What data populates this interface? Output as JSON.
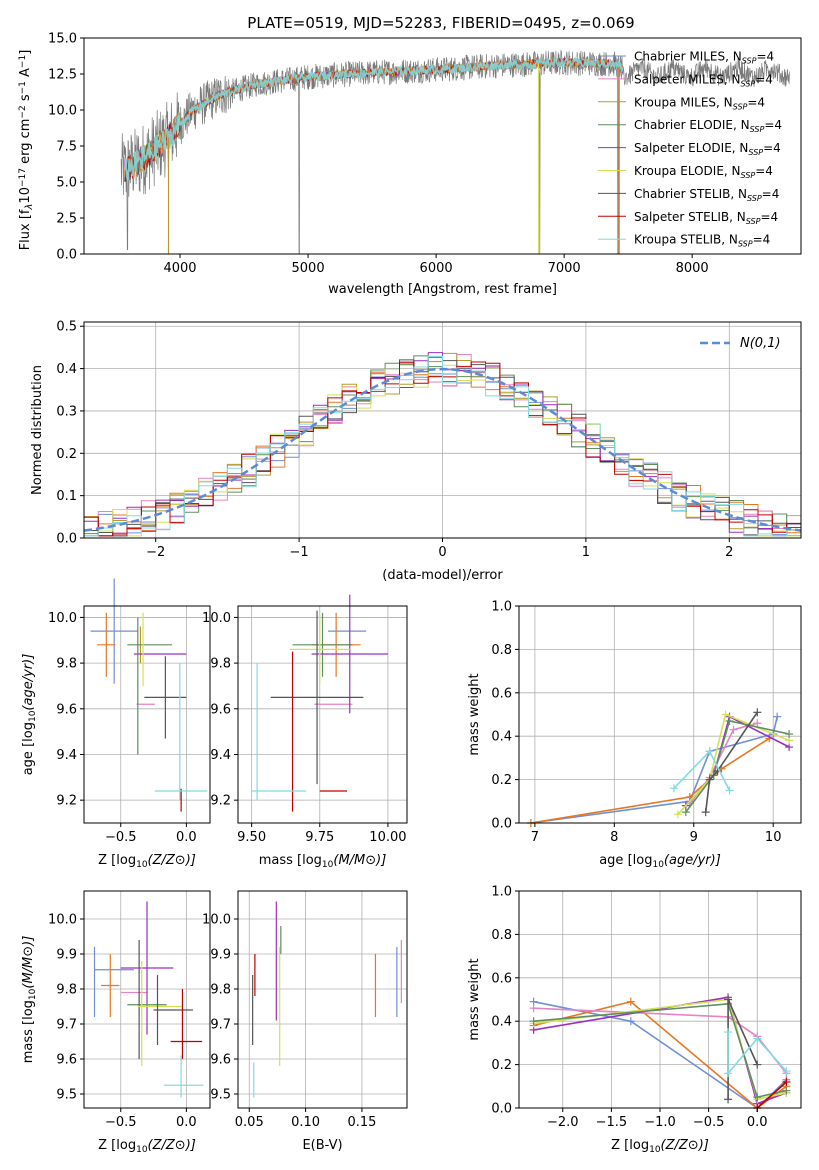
{
  "figure_title": "PLATE=0519, MJD=52283, FIBERID=0495, z=0.069",
  "colors": {
    "blue": "#6f8fd6",
    "orange": "#e87722",
    "pink": "#e683c2",
    "olive": "#b59b2e",
    "green": "#5f8f5f",
    "purple": "#9b30c0",
    "yellow": "#d4e157",
    "dark": "#555555",
    "red": "#c00000",
    "cyan": "#80dce0",
    "gray": "#7a7a7a"
  },
  "legend_model_names": [
    "Chabrier MILES",
    "Salpeter MILES",
    "Kroupa MILES",
    "Chabrier ELODIE",
    "Salpeter ELODIE",
    "Kroupa ELODIE",
    "Chabrier STELIB",
    "Salpeter STELIB",
    "Kroupa STELIB"
  ],
  "legend_nssp": "N",
  "legend_nssp_sub": "SSP",
  "legend_nssp_val": "=4",
  "chart_data": [
    {
      "id": "spectrum",
      "type": "line",
      "xlabel": "wavelength [Angstrom, rest frame]",
      "ylabel_parts": [
        "Flux [f",
        "λ",
        "10",
        "−17",
        " erg cm",
        "−2",
        " s",
        "−1",
        " A",
        "−1",
        "]"
      ],
      "xlim": [
        3250,
        8850
      ],
      "ylim": [
        0,
        15
      ],
      "xticks": [
        4000,
        5000,
        6000,
        7000,
        8000
      ],
      "yticks": [
        0.0,
        2.5,
        5.0,
        7.5,
        10.0,
        12.5,
        15.0
      ],
      "ytick_labels": [
        "0.0",
        "2.5",
        "5.0",
        "7.5",
        "10.0",
        "12.5",
        "15.0"
      ],
      "continuum": {
        "x": [
          3560,
          3700,
          3900,
          4000,
          4100,
          4300,
          4600,
          5000,
          5500,
          6000,
          6500,
          7000,
          7400,
          7460
        ],
        "y": [
          5.8,
          6.5,
          8.0,
          9.0,
          10.0,
          11.0,
          11.8,
          12.3,
          12.6,
          12.8,
          13.1,
          13.3,
          13.2,
          12.8
        ]
      },
      "model_xrange": [
        3560,
        7460
      ],
      "data_xrange": [
        3540,
        8760
      ]
    },
    {
      "id": "residuals",
      "type": "histogram",
      "xlabel": "(data-model)/error",
      "ylabel": "Normed distribution",
      "xlim": [
        -2.5,
        2.5
      ],
      "ylim": [
        0,
        0.51
      ],
      "xticks": [
        -2,
        -1,
        0,
        1,
        2
      ],
      "xtick_labels": [
        "−2",
        "−1",
        "0",
        "1",
        "2"
      ],
      "yticks": [
        0.0,
        0.1,
        0.2,
        0.3,
        0.4,
        0.5
      ],
      "ytick_labels": [
        "0.0",
        "0.1",
        "0.2",
        "0.3",
        "0.4",
        "0.5"
      ],
      "bin_width": 0.1,
      "reference_label": "N(0,1)",
      "reference_mean": 0,
      "reference_sigma": 1
    },
    {
      "id": "age_vs_Z",
      "type": "scatter",
      "xlabel": "Z [log10(Z/Z⊙)]",
      "ylabel": "age  [log10(age/yr)]",
      "xlim": [
        -0.78,
        0.18
      ],
      "ylim": [
        9.1,
        10.05
      ],
      "xticks": [
        -0.5,
        0.0
      ],
      "xtick_labels": [
        "−0.5",
        "0.0"
      ],
      "yticks": [
        9.2,
        9.4,
        9.6,
        9.8,
        10.0
      ],
      "ytick_labels": [
        "9.2",
        "9.4",
        "9.6",
        "9.8",
        "10.0"
      ],
      "points": [
        {
          "c": "blue",
          "x": -0.55,
          "xe": 0.18,
          "y": 9.94,
          "ye": 0.23
        },
        {
          "c": "orange",
          "x": -0.61,
          "xe": 0.07,
          "y": 9.88,
          "ye": 0.14
        },
        {
          "c": "pink",
          "x": -0.31,
          "xe": 0.07,
          "y": 9.62,
          "ye": 0.0
        },
        {
          "c": "olive",
          "x": -0.35,
          "xe": 0.0,
          "y": 9.88,
          "ye": 0.08
        },
        {
          "c": "green",
          "x": -0.28,
          "xe": 0.17,
          "y": 9.88,
          "ye": 0.0
        },
        {
          "c": "purple",
          "x": -0.2,
          "xe": 0.2,
          "y": 9.84,
          "ye": 0.0
        },
        {
          "c": "yellow",
          "x": -0.33,
          "xe": 0.0,
          "y": 9.86,
          "ye": 0.16
        },
        {
          "c": "dark",
          "x": -0.16,
          "xe": 0.16,
          "y": 9.65,
          "ye": 0.18
        },
        {
          "c": "red",
          "x": -0.04,
          "xe": 0.0,
          "y": 9.2,
          "ye": 0.05
        },
        {
          "c": "cyan",
          "x": -0.04,
          "xe": 0.2,
          "y": 9.24,
          "ye": 0.0
        },
        {
          "c": "green",
          "x": -0.37,
          "xe": 0.0,
          "y": 9.7,
          "ye": 0.3
        },
        {
          "c": "cyan",
          "x": -0.05,
          "xe": 0.0,
          "y": 9.5,
          "ye": 0.3
        }
      ]
    },
    {
      "id": "age_vs_mass",
      "type": "scatter",
      "xlabel": "mass [log10(M/M⊙)]",
      "ylabel": "",
      "xlim": [
        9.45,
        10.07
      ],
      "ylim": [
        9.1,
        10.05
      ],
      "xticks": [
        9.5,
        9.75,
        10.0
      ],
      "xtick_labels": [
        "9.50",
        "9.75",
        "10.00"
      ],
      "yticks": [
        9.2,
        9.4,
        9.6,
        9.8,
        10.0
      ],
      "ytick_labels": [
        "9.2",
        "9.4",
        "9.6",
        "9.8",
        "10.0"
      ],
      "points": [
        {
          "c": "blue",
          "x": 9.85,
          "xe": 0.07,
          "y": 9.94,
          "ye": 0.0
        },
        {
          "c": "orange",
          "x": 9.81,
          "xe": 0.09,
          "y": 9.88,
          "ye": 0.14
        },
        {
          "c": "pink",
          "x": 9.8,
          "xe": 0.07,
          "y": 9.62,
          "ye": 0.0
        },
        {
          "c": "green",
          "x": 9.76,
          "xe": 0.11,
          "y": 9.88,
          "ye": 0.14
        },
        {
          "c": "purple",
          "x": 9.86,
          "xe": 0.14,
          "y": 9.84,
          "ye": 0.26
        },
        {
          "c": "yellow",
          "x": 9.75,
          "xe": 0.11,
          "y": 9.86,
          "ye": 0.15
        },
        {
          "c": "dark",
          "x": 9.74,
          "xe": 0.17,
          "y": 9.65,
          "ye": 0.38
        },
        {
          "c": "red",
          "x": 9.65,
          "xe": 0.0,
          "y": 9.5,
          "ye": 0.35
        },
        {
          "c": "red",
          "x": 9.8,
          "xe": 0.05,
          "y": 9.24,
          "ye": 0.0
        },
        {
          "c": "cyan",
          "x": 9.52,
          "xe": 0.0,
          "y": 9.5,
          "ye": 0.3
        },
        {
          "c": "cyan",
          "x": 9.6,
          "xe": 0.1,
          "y": 9.24,
          "ye": 0.0
        }
      ]
    },
    {
      "id": "weight_vs_age",
      "type": "line",
      "xlabel": "age  [log10(age/yr)]",
      "ylabel": "mass weight",
      "xlim": [
        6.8,
        10.35
      ],
      "ylim": [
        0,
        1.0
      ],
      "xticks": [
        7,
        8,
        9,
        10
      ],
      "xtick_labels": [
        "7",
        "8",
        "9",
        "10"
      ],
      "yticks": [
        0.0,
        0.2,
        0.4,
        0.6,
        0.8,
        1.0
      ],
      "ytick_labels": [
        "0.0",
        "0.2",
        "0.4",
        "0.6",
        "0.8",
        "1.0"
      ],
      "series": [
        {
          "c": "blue",
          "x": [
            6.95,
            8.95,
            9.2,
            10.0,
            10.05
          ],
          "y": [
            0.0,
            0.1,
            0.33,
            0.41,
            0.49
          ]
        },
        {
          "c": "orange",
          "x": [
            6.95,
            8.95,
            9.35,
            9.95
          ],
          "y": [
            0.0,
            0.12,
            0.25,
            0.39
          ]
        },
        {
          "c": "pink",
          "x": [
            8.95,
            9.2,
            9.5,
            9.8
          ],
          "y": [
            0.09,
            0.21,
            0.43,
            0.46
          ]
        },
        {
          "c": "purple",
          "x": [
            8.9,
            9.25,
            9.45,
            10.2
          ],
          "y": [
            0.08,
            0.22,
            0.49,
            0.35
          ]
        },
        {
          "c": "yellow",
          "x": [
            8.8,
            9.2,
            9.4,
            10.2
          ],
          "y": [
            0.04,
            0.2,
            0.5,
            0.38
          ]
        },
        {
          "c": "green",
          "x": [
            8.9,
            9.25,
            9.45,
            10.2
          ],
          "y": [
            0.05,
            0.22,
            0.47,
            0.41
          ]
        },
        {
          "c": "dark",
          "x": [
            9.15,
            9.2,
            9.3,
            9.8
          ],
          "y": [
            0.05,
            0.2,
            0.24,
            0.51
          ]
        },
        {
          "c": "cyan",
          "x": [
            8.75,
            9.2,
            9.45
          ],
          "y": [
            0.16,
            0.33,
            0.15
          ]
        }
      ]
    },
    {
      "id": "mass_vs_Z",
      "type": "scatter",
      "xlabel": "Z [log10(Z/Z⊙)]",
      "ylabel": "mass [log10(M/M⊙)]",
      "xlim": [
        -0.78,
        0.18
      ],
      "ylim": [
        9.46,
        10.08
      ],
      "xticks": [
        -0.5,
        0.0
      ],
      "xtick_labels": [
        "−0.5",
        "0.0"
      ],
      "yticks": [
        9.5,
        9.6,
        9.7,
        9.8,
        9.9,
        10.0
      ],
      "ytick_labels": [
        "9.5",
        "9.6",
        "9.7",
        "9.8",
        "9.9",
        "10.0"
      ],
      "points": [
        {
          "c": "blue",
          "x": -0.7,
          "xe": 0.0,
          "y": 9.82,
          "ye": 0.1
        },
        {
          "c": "blue",
          "x": -0.55,
          "xe": 0.15,
          "y": 9.855,
          "ye": 0.0
        },
        {
          "c": "orange",
          "x": -0.58,
          "xe": 0.07,
          "y": 9.81,
          "ye": 0.09
        },
        {
          "c": "pink",
          "x": -0.4,
          "xe": 0.1,
          "y": 9.79,
          "ye": 0.0
        },
        {
          "c": "purple",
          "x": -0.3,
          "xe": 0.2,
          "y": 9.86,
          "ye": 0.19
        },
        {
          "c": "green",
          "x": -0.3,
          "xe": 0.15,
          "y": 9.755,
          "ye": 0.0
        },
        {
          "c": "dark",
          "x": -0.36,
          "xe": 0.0,
          "y": 9.77,
          "ye": 0.17
        },
        {
          "c": "yellow",
          "x": -0.34,
          "xe": 0.0,
          "y": 9.73,
          "ye": 0.15
        },
        {
          "c": "yellow",
          "x": -0.2,
          "xe": 0.17,
          "y": 9.75,
          "ye": 0.0
        },
        {
          "c": "dark",
          "x": -0.1,
          "xe": 0.15,
          "y": 9.74,
          "ye": 0.0
        },
        {
          "c": "dark",
          "x": -0.22,
          "xe": 0.0,
          "y": 9.74,
          "ye": 0.1
        },
        {
          "c": "red",
          "x": 0.0,
          "xe": 0.12,
          "y": 9.65,
          "ye": 0.0
        },
        {
          "c": "red",
          "x": -0.03,
          "xe": 0.0,
          "y": 9.7,
          "ye": 0.1
        },
        {
          "c": "cyan",
          "x": -0.02,
          "xe": 0.15,
          "y": 9.525,
          "ye": 0.0
        },
        {
          "c": "cyan",
          "x": -0.04,
          "xe": 0.0,
          "y": 9.55,
          "ye": 0.06
        }
      ]
    },
    {
      "id": "mass_vs_EBV",
      "type": "scatter",
      "xlabel": "E(B-V)",
      "ylabel": "",
      "xlim": [
        0.04,
        0.19
      ],
      "ylim": [
        9.46,
        10.08
      ],
      "xticks": [
        0.05,
        0.1,
        0.15
      ],
      "xtick_labels": [
        "0.05",
        "0.10",
        "0.15"
      ],
      "yticks": [
        9.5,
        9.6,
        9.7,
        9.8,
        9.9,
        10.0
      ],
      "ytick_labels": [
        "9.5",
        "9.6",
        "9.7",
        "9.8",
        "9.9",
        "10.0"
      ],
      "points": [
        {
          "c": "red",
          "x": 0.055,
          "ye": 0.06,
          "y": 9.84
        },
        {
          "c": "dark",
          "x": 0.053,
          "ye": 0.1,
          "y": 9.74
        },
        {
          "c": "cyan",
          "x": 0.054,
          "ye": 0.05,
          "y": 9.54
        },
        {
          "c": "purple",
          "x": 0.074,
          "ye": 0.17,
          "y": 9.88
        },
        {
          "c": "yellow",
          "x": 0.077,
          "ye": 0.17,
          "y": 9.75
        },
        {
          "c": "green",
          "x": 0.078,
          "ye": 0.04,
          "y": 9.94
        },
        {
          "c": "orange",
          "x": 0.162,
          "ye": 0.09,
          "y": 9.81
        },
        {
          "c": "blue",
          "x": 0.181,
          "ye": 0.1,
          "y": 9.82
        },
        {
          "c": "pink",
          "x": 0.185,
          "ye": 0.09,
          "y": 9.85
        }
      ]
    },
    {
      "id": "weight_vs_Z",
      "type": "line",
      "xlabel": "Z [log10(Z/Z⊙)]",
      "ylabel": "mass weight",
      "xlim": [
        -2.45,
        0.45
      ],
      "ylim": [
        0,
        1.0
      ],
      "xticks": [
        -2.0,
        -1.5,
        -1.0,
        -0.5,
        0.0
      ],
      "xtick_labels": [
        "−2.0",
        "−1.5",
        "−1.0",
        "−0.5",
        "0.0"
      ],
      "yticks": [
        0.0,
        0.2,
        0.4,
        0.6,
        0.8,
        1.0
      ],
      "ytick_labels": [
        "0.0",
        "0.2",
        "0.4",
        "0.6",
        "0.8",
        "1.0"
      ],
      "series": [
        {
          "c": "blue",
          "x": [
            -2.3,
            -1.3,
            0.0,
            0.3
          ],
          "y": [
            0.49,
            0.4,
            0.0,
            0.13
          ]
        },
        {
          "c": "orange",
          "x": [
            -2.3,
            -1.3,
            0.0,
            0.3
          ],
          "y": [
            0.38,
            0.49,
            0.0,
            0.1
          ]
        },
        {
          "c": "pink",
          "x": [
            -2.3,
            -0.3,
            0.0,
            0.3
          ],
          "y": [
            0.46,
            0.42,
            0.33,
            0.16
          ]
        },
        {
          "c": "purple",
          "x": [
            -2.3,
            -0.3,
            0.0,
            0.3
          ],
          "y": [
            0.36,
            0.51,
            0.02,
            0.07
          ]
        },
        {
          "c": "yellow",
          "x": [
            -2.3,
            -0.3,
            0.0,
            0.3
          ],
          "y": [
            0.39,
            0.5,
            0.04,
            0.07
          ]
        },
        {
          "c": "green",
          "x": [
            -2.3,
            -0.3,
            0.0,
            0.3
          ],
          "y": [
            0.4,
            0.48,
            0.05,
            0.08
          ]
        },
        {
          "c": "dark",
          "x": [
            -0.3,
            -0.3,
            0.0
          ],
          "y": [
            0.04,
            0.5,
            0.2
          ]
        },
        {
          "c": "cyan",
          "x": [
            -0.3,
            -0.3,
            0.0,
            0.3
          ],
          "y": [
            0.35,
            0.16,
            0.32,
            0.17
          ]
        },
        {
          "c": "red",
          "x": [
            0.0,
            0.3
          ],
          "y": [
            0.0,
            0.12
          ]
        }
      ]
    }
  ]
}
